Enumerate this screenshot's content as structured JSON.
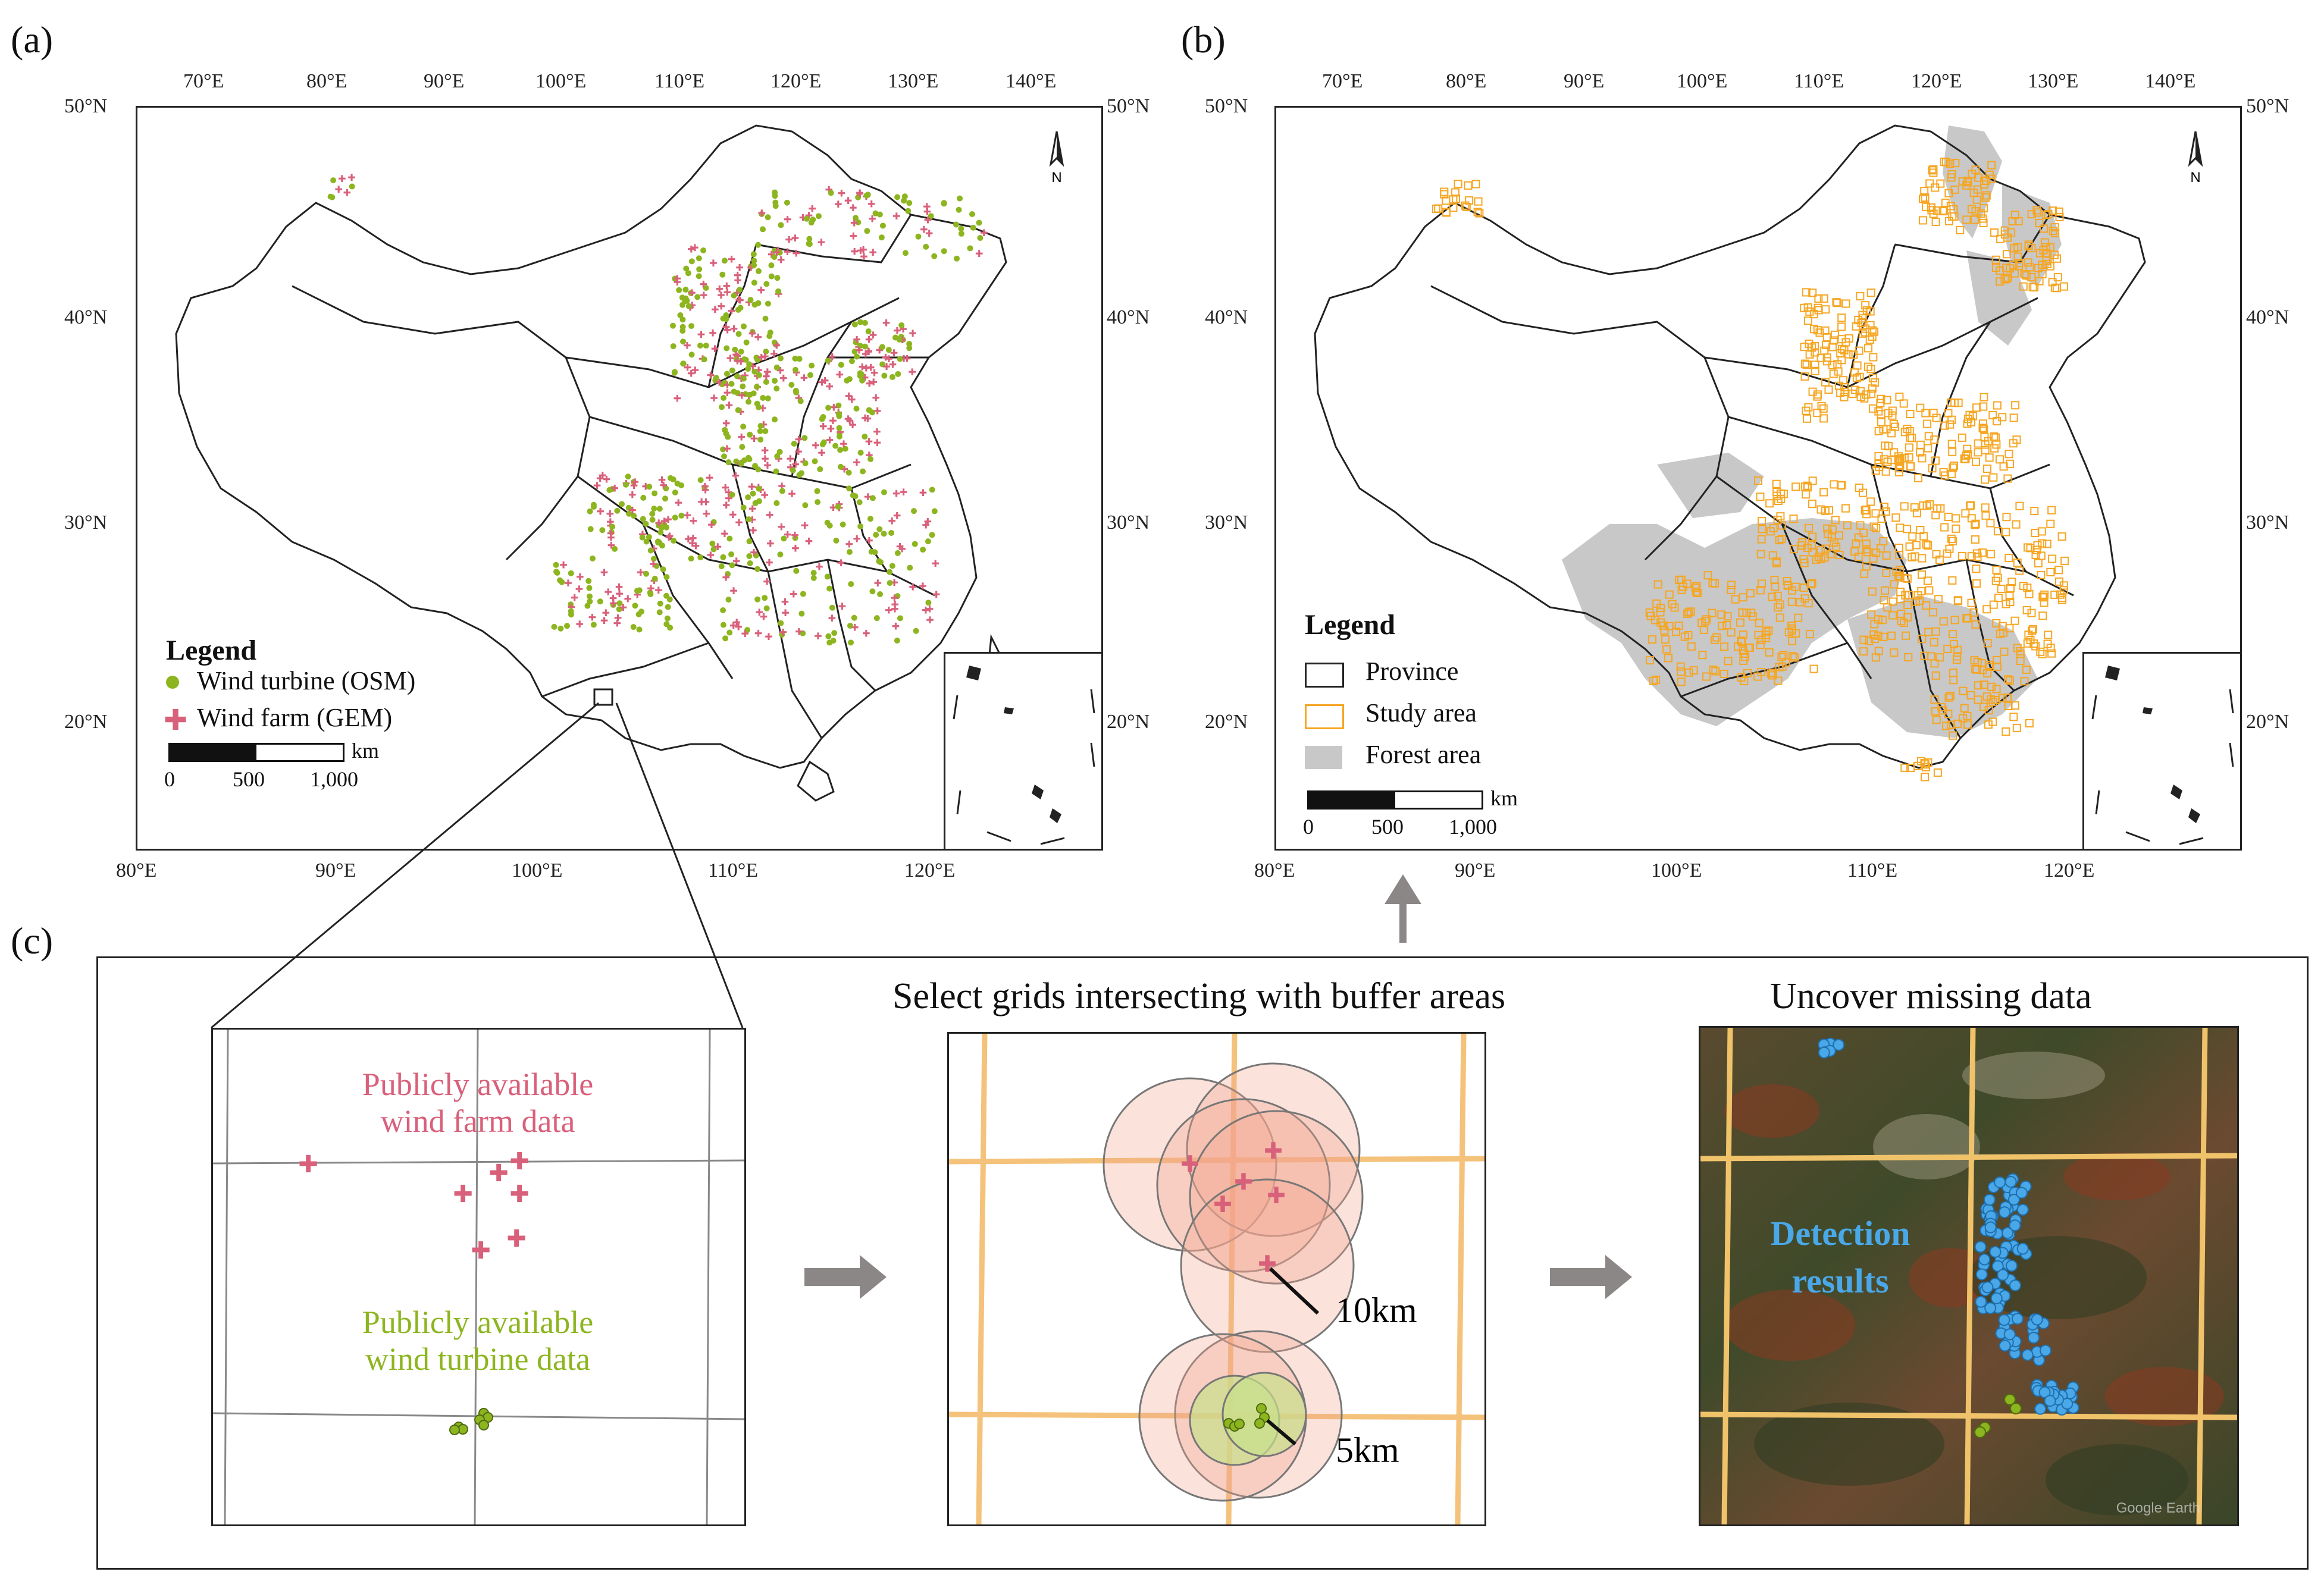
{
  "panels": {
    "a": {
      "label": "(a)"
    },
    "b": {
      "label": "(b)"
    },
    "c": {
      "label": "(c)"
    }
  },
  "ticks": {
    "a_top": [
      "70°E",
      "80°E",
      "90°E",
      "100°E",
      "110°E",
      "120°E",
      "130°E",
      "140°E"
    ],
    "a_bottom": [
      "80°E",
      "90°E",
      "100°E",
      "110°E",
      "120°E"
    ],
    "a_left": [
      "50°N",
      "40°N",
      "30°N",
      "20°N"
    ],
    "a_right": [
      "50°N",
      "40°N",
      "30°N",
      "20°N"
    ],
    "b_top": [
      "70°E",
      "80°E",
      "90°E",
      "100°E",
      "110°E",
      "120°E",
      "130°E",
      "140°E"
    ],
    "b_bottom": [
      "80°E",
      "90°E",
      "100°E",
      "110°E",
      "120°E"
    ],
    "b_left": [
      "50°N",
      "40°N",
      "30°N",
      "20°N"
    ],
    "b_right": [
      "50°N",
      "40°N",
      "30°N",
      "20°N"
    ]
  },
  "north_arrow": "N",
  "legend_a": {
    "title": "Legend",
    "items": [
      "Wind turbine (OSM)",
      "Wind farm (GEM)"
    ],
    "scale_unit": "km",
    "scale_labels": [
      "0",
      "500",
      "1,000"
    ]
  },
  "legend_b": {
    "title": "Legend",
    "items": [
      "Province",
      "Study area",
      "Forest area"
    ],
    "scale_unit": "km",
    "scale_labels": [
      "0",
      "500",
      "1,000"
    ]
  },
  "panel_c": {
    "zoom_label_farm": "Publicly available\nwind farm data",
    "zoom_label_turbine": "Publicly available\nwind turbine data",
    "step2_title": "Select grids intersecting with buffer areas",
    "step3_title": "Uncover missing data",
    "buffer_10": "10km",
    "buffer_5": "5km",
    "detection": "Detection\nresults",
    "watermark": "Google Earth"
  },
  "colors": {
    "turbine": "#8db51f",
    "farm": "#d9607a",
    "study": "#f5a623",
    "forest": "#c8c8c8",
    "detection": "#4aa8e8",
    "arrow": "#8c8787"
  }
}
